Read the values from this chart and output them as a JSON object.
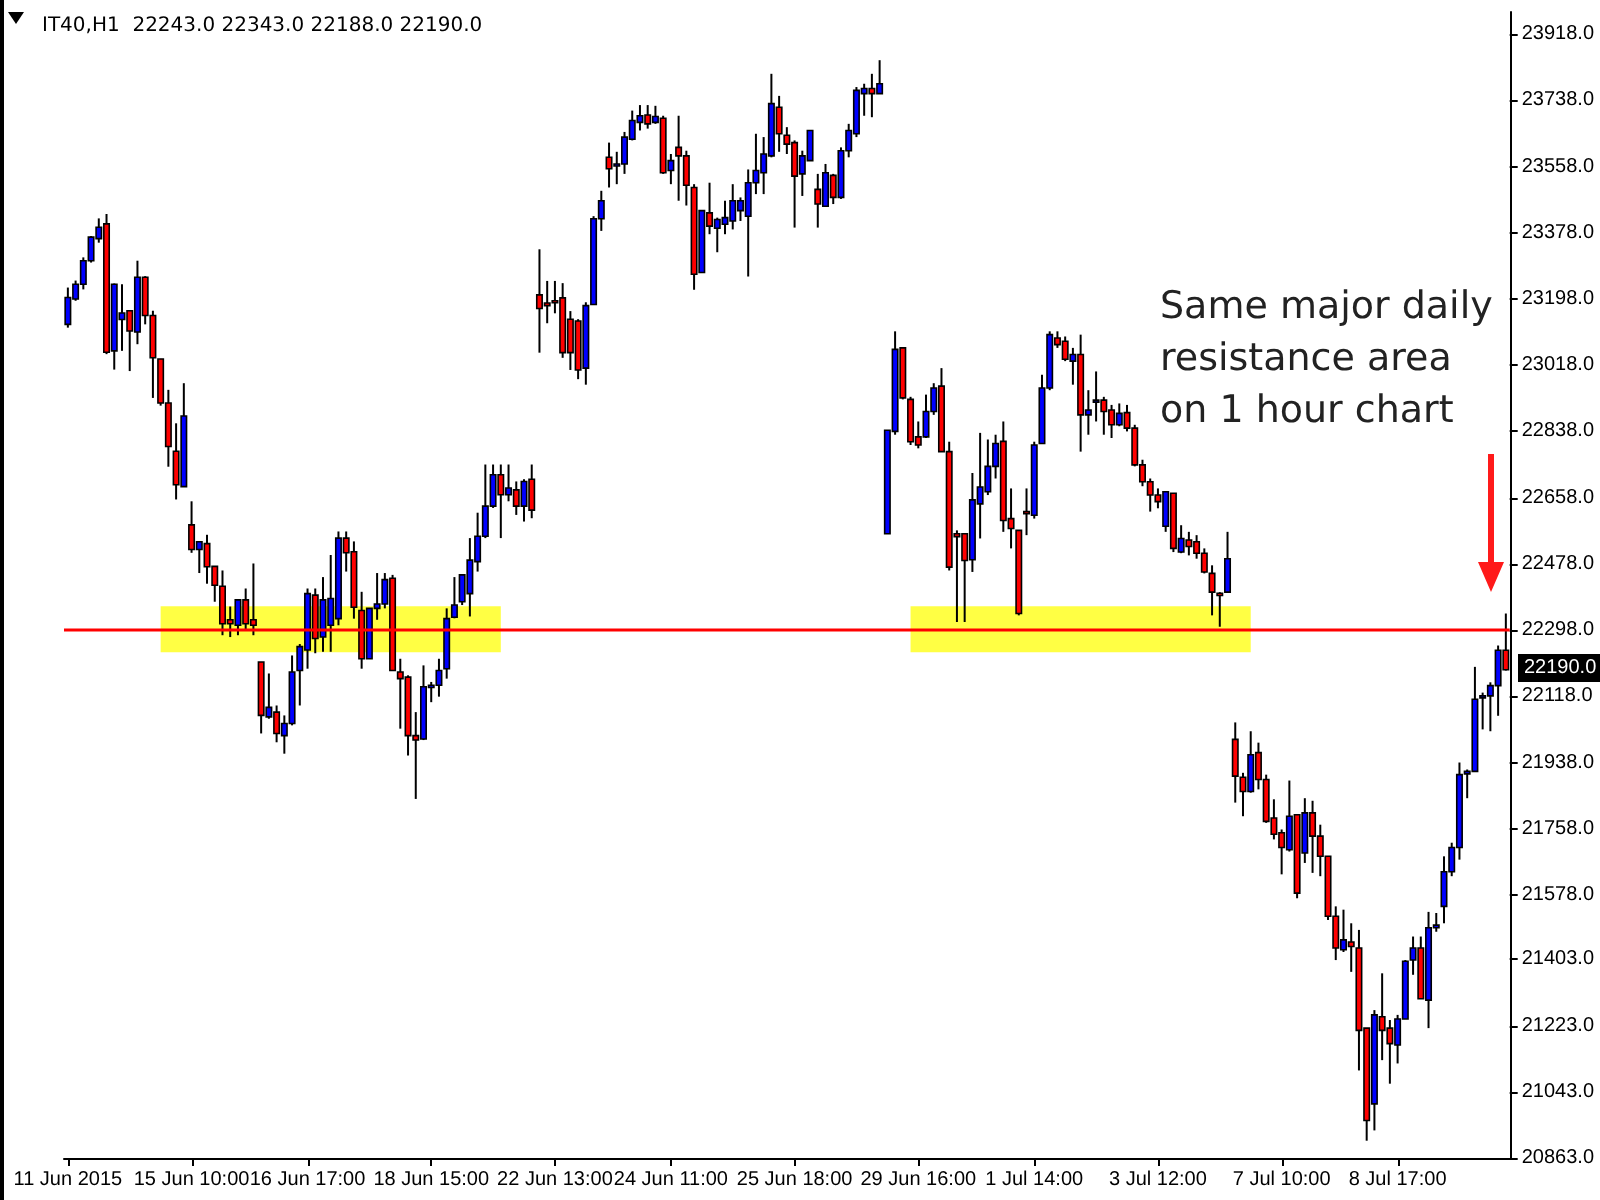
{
  "chart_data": {
    "type": "candlestick",
    "title": "IT40,H1  22243.0 22343.0 22188.0 22190.0",
    "categories": [
      "11 Jun 2015",
      null,
      null,
      null,
      null,
      null,
      null,
      null,
      null,
      null,
      null,
      null,
      null,
      null,
      null,
      null,
      "15 Jun 10:00",
      null,
      null,
      null,
      null,
      null,
      null,
      null,
      null,
      null,
      null,
      null,
      null,
      null,
      null,
      "16 Jun 17:00",
      null,
      null,
      null,
      null,
      null,
      null,
      null,
      null,
      null,
      null,
      null,
      null,
      null,
      null,
      null,
      "18 Jun 15:00",
      null,
      null,
      null,
      null,
      null,
      null,
      null,
      null,
      null,
      null,
      null,
      null,
      null,
      null,
      null,
      "22 Jun 13:00",
      null,
      null,
      null,
      null,
      null,
      null,
      null,
      null,
      null,
      null,
      null,
      null,
      null,
      null,
      "24 Jun 11:00",
      null,
      null,
      null,
      null,
      null,
      null,
      null,
      null,
      null,
      null,
      null,
      null,
      null,
      null,
      null,
      "25 Jun 18:00",
      null,
      null,
      null,
      null,
      null,
      null,
      null,
      null,
      null,
      null,
      null,
      null,
      null,
      null,
      null,
      "29 Jun 16:00",
      null,
      null,
      null,
      null,
      null,
      null,
      null,
      null,
      null,
      null,
      null,
      null,
      null,
      null,
      "1 Jul 14:00",
      null,
      null,
      null,
      null,
      null,
      null,
      null,
      null,
      null,
      null,
      null,
      null,
      null,
      null,
      null,
      "3 Jul 12:00",
      null,
      null,
      null,
      null,
      null,
      null,
      null,
      null,
      null,
      null,
      null,
      null,
      null,
      null,
      null,
      "7 Jul 10:00",
      null,
      null,
      null,
      null,
      null,
      null,
      null,
      null,
      null,
      null,
      null,
      null,
      null,
      null,
      "8 Jul 17:00",
      null,
      null,
      null,
      null,
      null,
      null,
      null,
      null,
      null,
      null,
      null,
      null,
      null,
      null
    ],
    "series": [
      {
        "colors": [
          "#0000ff",
          "#0000ff",
          "#0000ff",
          "#0000ff",
          "#0000ff",
          "#ff0000",
          "#0000ff",
          "#0000ff",
          "#ff0000",
          "#0000ff",
          "#ff0000",
          "#ff0000",
          "#ff0000",
          "#ff0000",
          "#ff0000",
          "#0000ff",
          "#ff0000",
          "#0000ff",
          "#ff0000",
          "#ff0000",
          "#ff0000",
          "#ff0000",
          "#0000ff",
          "#ff0000",
          "#ff0000",
          "#ff0000",
          "#0000ff",
          "#ff0000",
          "#0000ff",
          "#0000ff",
          "#0000ff",
          "#0000ff",
          "#ff0000",
          "#0000ff",
          "#0000ff",
          "#0000ff",
          "#ff0000",
          "#ff0000",
          "#ff0000",
          "#0000ff",
          "#0000ff",
          "#0000ff",
          "#ff0000",
          "#ff0000",
          "#ff0000",
          "#ff0000",
          "#0000ff",
          "#0000ff",
          "#0000ff",
          "#0000ff",
          "#0000ff",
          "#0000ff",
          "#0000ff",
          "#0000ff",
          "#0000ff",
          "#0000ff",
          "#ff0000",
          "#0000ff",
          "#ff0000",
          "#0000ff",
          "#ff0000",
          "#ff0000",
          "#ff0000",
          "#ff0000",
          "#ff0000",
          "#ff0000",
          "#ff0000",
          "#0000ff",
          "#0000ff",
          "#0000ff",
          "#ff0000",
          "#0000ff",
          "#0000ff",
          "#0000ff",
          "#0000ff",
          "#ff0000",
          "#0000ff",
          "#ff0000",
          "#0000ff",
          "#ff0000",
          "#ff0000",
          "#ff0000",
          "#0000ff",
          "#ff0000",
          "#0000ff",
          "#0000ff",
          "#0000ff",
          "#0000ff",
          "#0000ff",
          "#0000ff",
          "#0000ff",
          "#0000ff",
          "#ff0000",
          "#ff0000",
          "#ff0000",
          "#0000ff",
          "#0000ff",
          "#ff0000",
          "#0000ff",
          "#ff0000",
          "#0000ff",
          "#0000ff",
          "#0000ff",
          "#0000ff",
          "#ff0000",
          "#0000ff",
          "#0000ff",
          "#0000ff",
          "#ff0000",
          "#ff0000",
          "#ff0000",
          "#0000ff",
          "#0000ff",
          "#ff0000",
          "#ff0000",
          "#ff0000",
          "#ff0000",
          "#0000ff",
          "#0000ff",
          "#0000ff",
          "#0000ff",
          "#ff0000",
          "#ff0000",
          "#ff0000",
          "#ff0000",
          "#0000ff",
          "#0000ff",
          "#0000ff",
          "#ff0000",
          "#ff0000",
          "#0000ff",
          "#ff0000",
          "#0000ff",
          "#0000ff",
          "#ff0000",
          "#ff0000",
          "#0000ff",
          "#ff0000",
          "#ff0000",
          "#ff0000",
          "#ff0000",
          "#ff0000",
          "#0000ff",
          "#ff0000",
          "#0000ff",
          "#ff0000",
          "#ff0000",
          "#ff0000",
          "#ff0000",
          "#ff0000",
          "#0000ff",
          "#ff0000",
          "#ff0000",
          "#0000ff",
          "#ff0000",
          "#ff0000",
          "#ff0000",
          "#ff0000",
          "#0000ff",
          "#ff0000",
          "#0000ff",
          "#ff0000",
          "#ff0000",
          "#ff0000",
          "#ff0000",
          "#0000ff",
          "#ff0000",
          "#ff0000",
          "#ff0000",
          "#0000ff",
          "#ff0000",
          "#ff0000",
          "#0000ff",
          "#0000ff",
          "#0000ff",
          "#ff0000",
          "#0000ff",
          "#0000ff",
          "#0000ff",
          "#0000ff",
          "#0000ff",
          "#0000ff",
          "#0000ff",
          "#0000ff",
          "#0000ff",
          "#0000ff",
          "#ff0000"
        ],
        "ohlc": [
          [
            23129,
            23229,
            23120,
            23202
          ],
          [
            23198,
            23248,
            23193,
            23238
          ],
          [
            23238,
            23311,
            23224,
            23302
          ],
          [
            23302,
            23369,
            23297,
            23366
          ],
          [
            23362,
            23417,
            23351,
            23393
          ],
          [
            23402,
            23429,
            23048,
            23053
          ],
          [
            23057,
            23240,
            23006,
            23238
          ],
          [
            23142,
            23238,
            23057,
            23160
          ],
          [
            23166,
            23166,
            23002,
            23111
          ],
          [
            23108,
            23302,
            23075,
            23257
          ],
          [
            23257,
            23260,
            23129,
            23153
          ],
          [
            23153,
            23166,
            22929,
            23038
          ],
          [
            23035,
            23035,
            22908,
            22915
          ],
          [
            22915,
            22951,
            22742,
            22797
          ],
          [
            22784,
            22860,
            22653,
            22693
          ],
          [
            22688,
            22969,
            22688,
            22880
          ],
          [
            22584,
            22648,
            22508,
            22517
          ],
          [
            22517,
            22538,
            22453,
            22538
          ],
          [
            22533,
            22557,
            22424,
            22470
          ],
          [
            22471,
            22471,
            22375,
            22420
          ],
          [
            22417,
            22460,
            22284,
            22315
          ],
          [
            22326,
            22362,
            22279,
            22315
          ],
          [
            22311,
            22380,
            22284,
            22380
          ],
          [
            22380,
            22411,
            22297,
            22315
          ],
          [
            22326,
            22479,
            22284,
            22311
          ],
          [
            22211,
            22211,
            22017,
            22066
          ],
          [
            22062,
            22180,
            22057,
            22088
          ],
          [
            22075,
            22093,
            21993,
            22017
          ],
          [
            22011,
            22066,
            21962,
            22044
          ],
          [
            22044,
            22229,
            22039,
            22184
          ],
          [
            22188,
            22260,
            22093,
            22253
          ],
          [
            22244,
            22411,
            22193,
            22397
          ],
          [
            22393,
            22411,
            22235,
            22275
          ],
          [
            22279,
            22442,
            22239,
            22380
          ],
          [
            22311,
            22502,
            22239,
            22384
          ],
          [
            22329,
            22566,
            22311,
            22548
          ],
          [
            22548,
            22566,
            22457,
            22508
          ],
          [
            22511,
            22539,
            22329,
            22360
          ],
          [
            22351,
            22402,
            22193,
            22220
          ],
          [
            22220,
            22357,
            22220,
            22357
          ],
          [
            22357,
            22453,
            22326,
            22369
          ],
          [
            22369,
            22453,
            22357,
            22435
          ],
          [
            22439,
            22448,
            22188,
            22188
          ],
          [
            22184,
            22220,
            22030,
            22166
          ],
          [
            22170,
            22175,
            21957,
            22011
          ],
          [
            22011,
            22075,
            21839,
            21999
          ],
          [
            22002,
            22202,
            21999,
            22144
          ],
          [
            22142,
            22157,
            22102,
            22148
          ],
          [
            22148,
            22220,
            22117,
            22188
          ],
          [
            22193,
            22357,
            22166,
            22329
          ],
          [
            22333,
            22442,
            22330,
            22366
          ],
          [
            22375,
            22448,
            22366,
            22448
          ],
          [
            22397,
            22548,
            22335,
            22488
          ],
          [
            22484,
            22617,
            22457,
            22553
          ],
          [
            22553,
            22748,
            22548,
            22635
          ],
          [
            22635,
            22748,
            22630,
            22720
          ],
          [
            22720,
            22748,
            22548,
            22666
          ],
          [
            22666,
            22748,
            22648,
            22684
          ],
          [
            22679,
            22702,
            22611,
            22635
          ],
          [
            22635,
            22708,
            22593,
            22702
          ],
          [
            22708,
            22748,
            22602,
            22624
          ],
          [
            23209,
            23333,
            23052,
            23172
          ],
          [
            23187,
            23247,
            23132,
            23180
          ],
          [
            23193,
            23247,
            23159,
            23189
          ],
          [
            23201,
            23241,
            23038,
            23052
          ],
          [
            23143,
            23165,
            23005,
            23052
          ],
          [
            23138,
            23143,
            22980,
            23005
          ],
          [
            23010,
            23189,
            22965,
            23180
          ],
          [
            23183,
            23423,
            23183,
            23416
          ],
          [
            23416,
            23492,
            23383,
            23465
          ],
          [
            23583,
            23623,
            23501,
            23552
          ],
          [
            23560,
            23598,
            23510,
            23565
          ],
          [
            23565,
            23652,
            23538,
            23638
          ],
          [
            23632,
            23710,
            23629,
            23683
          ],
          [
            23678,
            23725,
            23656,
            23696
          ],
          [
            23698,
            23725,
            23661,
            23674
          ],
          [
            23678,
            23723,
            23674,
            23694
          ],
          [
            23689,
            23696,
            23538,
            23541
          ],
          [
            23547,
            23592,
            23510,
            23574
          ],
          [
            23610,
            23696,
            23465,
            23587
          ],
          [
            23587,
            23601,
            23452,
            23507
          ],
          [
            23501,
            23510,
            23223,
            23265
          ],
          [
            23270,
            23438,
            23270,
            23438
          ],
          [
            23432,
            23514,
            23374,
            23396
          ],
          [
            23390,
            23419,
            23325,
            23414
          ],
          [
            23401,
            23465,
            23374,
            23419
          ],
          [
            23410,
            23510,
            23387,
            23465
          ],
          [
            23438,
            23474,
            23410,
            23465
          ],
          [
            23423,
            23550,
            23259,
            23514
          ],
          [
            23514,
            23647,
            23483,
            23547
          ],
          [
            23541,
            23638,
            23483,
            23592
          ],
          [
            23587,
            23810,
            23583,
            23729
          ],
          [
            23719,
            23750,
            23598,
            23647
          ],
          [
            23643,
            23665,
            23592,
            23619
          ],
          [
            23623,
            23629,
            23392,
            23532
          ],
          [
            23538,
            23601,
            23478,
            23587
          ],
          [
            23574,
            23656,
            23574,
            23656
          ],
          [
            23496,
            23538,
            23392,
            23456
          ],
          [
            23450,
            23565,
            23450,
            23541
          ],
          [
            23534,
            23538,
            23456,
            23474
          ],
          [
            23474,
            23610,
            23470,
            23601
          ],
          [
            23601,
            23674,
            23583,
            23656
          ],
          [
            23647,
            23774,
            23638,
            23765
          ],
          [
            23756,
            23783,
            23696,
            23770
          ],
          [
            23770,
            23810,
            23692,
            23756
          ],
          [
            23756,
            23847,
            23756,
            23783
          ],
          [
            22560,
            22841,
            22560,
            22841
          ],
          [
            22838,
            23110,
            22829,
            23061
          ],
          [
            23065,
            23065,
            22925,
            22929
          ],
          [
            22925,
            22932,
            22801,
            22810
          ],
          [
            22823,
            22865,
            22792,
            22801
          ],
          [
            22823,
            22938,
            22820,
            22892
          ],
          [
            22892,
            22969,
            22883,
            22956
          ],
          [
            22961,
            23010,
            22783,
            22783
          ],
          [
            22783,
            22810,
            22460,
            22469
          ],
          [
            22560,
            22569,
            22320,
            22552
          ],
          [
            22560,
            22560,
            22320,
            22487
          ],
          [
            22489,
            22725,
            22456,
            22652
          ],
          [
            22641,
            22834,
            22547,
            22687
          ],
          [
            22674,
            22816,
            22665,
            22743
          ],
          [
            22743,
            22829,
            22710,
            22805
          ],
          [
            22811,
            22865,
            22565,
            22596
          ],
          [
            22601,
            22683,
            22520,
            22574
          ],
          [
            22569,
            22569,
            22338,
            22343
          ],
          [
            22620,
            22683,
            22556,
            22614
          ],
          [
            22610,
            22810,
            22601,
            22801
          ],
          [
            22805,
            22992,
            22805,
            22956
          ],
          [
            22956,
            23110,
            22950,
            23101
          ],
          [
            23092,
            23110,
            23065,
            23074
          ],
          [
            23083,
            23096,
            23029,
            23034
          ],
          [
            23029,
            23065,
            22965,
            23047
          ],
          [
            23047,
            23101,
            22783,
            22883
          ],
          [
            22883,
            22950,
            22829,
            22896
          ],
          [
            22918,
            23001,
            22865,
            22923
          ],
          [
            22923,
            22932,
            22829,
            22892
          ],
          [
            22896,
            22910,
            22820,
            22856
          ],
          [
            22856,
            22914,
            22852,
            22887
          ],
          [
            22889,
            22910,
            22838,
            22847
          ],
          [
            22847,
            22856,
            22743,
            22747
          ],
          [
            22747,
            22761,
            22689,
            22701
          ],
          [
            22701,
            22710,
            22620,
            22665
          ],
          [
            22665,
            22683,
            22629,
            22647
          ],
          [
            22580,
            22674,
            22565,
            22674
          ],
          [
            22670,
            22670,
            22510,
            22520
          ],
          [
            22510,
            22583,
            22507,
            22547
          ],
          [
            22543,
            22565,
            22501,
            22525
          ],
          [
            22538,
            22556,
            22492,
            22507
          ],
          [
            22507,
            22520,
            22452,
            22456
          ],
          [
            22452,
            22474,
            22338,
            22401
          ],
          [
            22398,
            22401,
            22307,
            22392
          ],
          [
            22401,
            22565,
            22401,
            22492
          ],
          [
            22001,
            22047,
            21829,
            21901
          ],
          [
            21898,
            21910,
            21792,
            21859
          ],
          [
            21859,
            22023,
            21856,
            21959
          ],
          [
            21965,
            21992,
            21865,
            21892
          ],
          [
            21892,
            21905,
            21774,
            21778
          ],
          [
            21787,
            21838,
            21729,
            21743
          ],
          [
            21747,
            21756,
            21634,
            21707
          ],
          [
            21701,
            21889,
            21696,
            21792
          ],
          [
            21796,
            21796,
            21569,
            21583
          ],
          [
            21692,
            21841,
            21665,
            21801
          ],
          [
            21801,
            21834,
            21638,
            21738
          ],
          [
            21738,
            21769,
            21629,
            21683
          ],
          [
            21683,
            21683,
            21510,
            21520
          ],
          [
            21520,
            21547,
            21401,
            21434
          ],
          [
            21429,
            21538,
            21423,
            21456
          ],
          [
            21450,
            21501,
            21369,
            21438
          ],
          [
            21434,
            21483,
            21101,
            21210
          ],
          [
            21216,
            21216,
            20910,
            20965
          ],
          [
            21010,
            21265,
            20938,
            21252
          ],
          [
            21247,
            21365,
            21129,
            21210
          ],
          [
            21216,
            21238,
            21065,
            21174
          ],
          [
            21170,
            21252,
            21120,
            21241
          ],
          [
            21241,
            21401,
            21241,
            21398
          ],
          [
            21401,
            21465,
            21361,
            21434
          ],
          [
            21434,
            21465,
            21296,
            21296
          ],
          [
            21292,
            21532,
            21216,
            21489
          ],
          [
            21489,
            21529,
            21478,
            21496
          ],
          [
            21547,
            21683,
            21501,
            21641
          ],
          [
            21641,
            21720,
            21629,
            21707
          ],
          [
            21707,
            21938,
            21674,
            21905
          ],
          [
            21907,
            21919,
            21841,
            21914
          ],
          [
            21914,
            22198,
            21914,
            22110
          ],
          [
            22114,
            22128,
            22028,
            22119
          ],
          [
            22119,
            22156,
            22023,
            22147
          ],
          [
            22147,
            22256,
            22065,
            22243
          ],
          [
            22243,
            22343,
            22188,
            22190
          ]
        ]
      }
    ],
    "ylim": [
      20863,
      23978
    ],
    "yticks": [
      {
        "value": 23918,
        "label": "23918.0"
      },
      {
        "value": 23738,
        "label": "23738.0"
      },
      {
        "value": 23558,
        "label": "23558.0"
      },
      {
        "value": 23378,
        "label": "23378.0"
      },
      {
        "value": 23198,
        "label": "23198.0"
      },
      {
        "value": 23018,
        "label": "23018.0"
      },
      {
        "value": 22838,
        "label": "22838.0"
      },
      {
        "value": 22658,
        "label": "22658.0"
      },
      {
        "value": 22478,
        "label": "22478.0"
      },
      {
        "value": 22298,
        "label": "22298.0"
      },
      {
        "value": 22118,
        "label": "22118.0"
      },
      {
        "value": 21938,
        "label": "21938.0"
      },
      {
        "value": 21758,
        "label": "21758.0"
      },
      {
        "value": 21578,
        "label": "21578.0"
      },
      {
        "value": 21403,
        "label": "21403.0"
      },
      {
        "value": 21223,
        "label": "21223.0"
      },
      {
        "value": 21043,
        "label": "21043.0"
      },
      {
        "value": 20863,
        "label": "20863.0"
      }
    ],
    "ref_lines": [
      {
        "axis": "y",
        "value": 22298,
        "color": "#ff0000"
      }
    ],
    "bands": [
      {
        "axis": "y",
        "from": 22238,
        "to": 22363,
        "color": "#ffff44"
      },
      {
        "axis": "y",
        "from": 22238,
        "to": 22363,
        "color": "#ffff44"
      }
    ],
    "annotations": [
      "Same major daily resistance area on 1 hour chart",
      "22190.0"
    ]
  }
}
